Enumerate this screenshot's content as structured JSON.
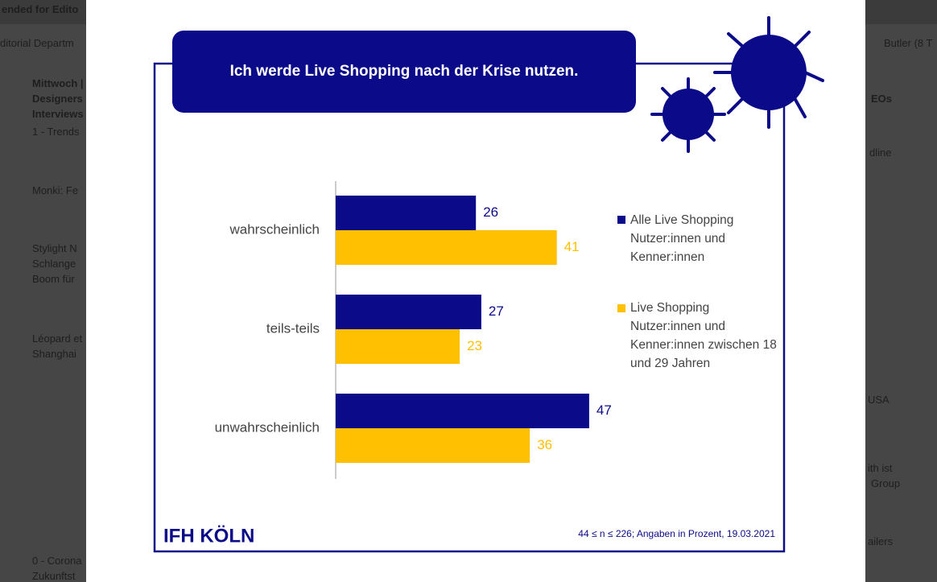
{
  "background": {
    "items": [
      "ended for Edito",
      "ditorial Departm",
      "Mittwoch |",
      "Designers",
      "Interviews",
      "1 - Trends",
      "Monki: Fe",
      "Stylight N",
      "Schlange",
      "Boom für",
      "Léopard et",
      "Shanghai",
      "0 - Corona",
      "Zukunftst",
      "Butler (8 T",
      "EOs",
      "dline",
      "USA",
      "ith ist",
      "Group",
      "ailers"
    ]
  },
  "chart_data": {
    "type": "bar",
    "orientation": "horizontal",
    "title": "Ich werde Live Shopping nach der Krise nutzen.",
    "categories": [
      "wahrscheinlich",
      "teils-teils",
      "unwahrscheinlich"
    ],
    "series": [
      {
        "name": "Alle Live Shopping Nutzer:innen und Kenner:innen",
        "color": "#0b0b8a",
        "values": [
          26,
          27,
          47
        ]
      },
      {
        "name": "Live Shopping Nutzer:innen und Kenner:innen zwischen 18 und 29 Jahren",
        "color": "#fec000",
        "values": [
          41,
          23,
          36
        ]
      }
    ],
    "xlim": [
      0,
      50
    ],
    "logo": "IFH KÖLN",
    "note": "44 ≤ n ≤ 226; Angaben in Prozent, 19.03.2021"
  }
}
